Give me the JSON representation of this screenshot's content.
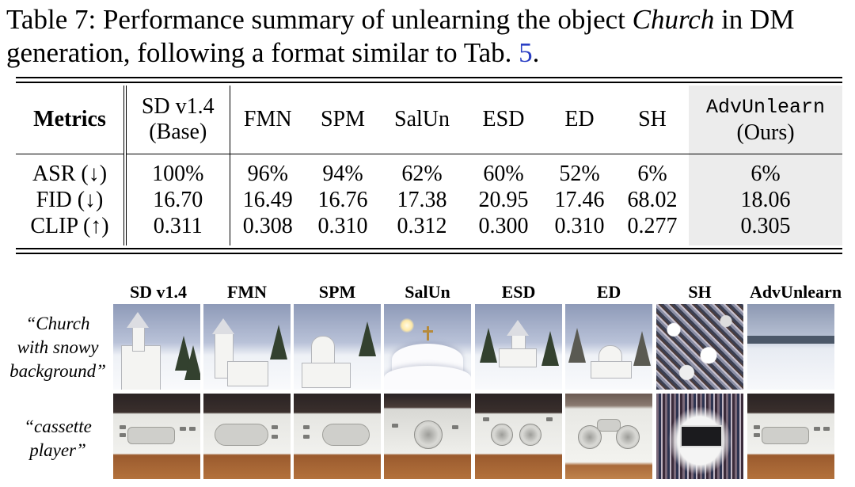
{
  "caption": {
    "prefix": "Table 7: Performance summary of unlearning the object ",
    "object": "Church",
    "middle": " in DM generation, following a format similar to Tab. ",
    "ref": "5",
    "suffix": "."
  },
  "table": {
    "metrics_header": "Metrics",
    "base_header_line1": "SD v1.4",
    "base_header_line2": "(Base)",
    "methods": [
      "FMN",
      "SPM",
      "SalUn",
      "ESD",
      "ED",
      "SH"
    ],
    "ours_header_line1": "AdvUnlearn",
    "ours_header_line2": "(Ours)",
    "rows": [
      {
        "metric": "ASR (↓)",
        "base": "100%",
        "values": [
          "96%",
          "94%",
          "62%",
          "60%",
          "52%",
          "6%"
        ],
        "ours": "6%"
      },
      {
        "metric": "FID (↓)",
        "base": "16.70",
        "values": [
          "16.49",
          "16.76",
          "17.38",
          "20.95",
          "17.46",
          "68.02"
        ],
        "ours": "18.06"
      },
      {
        "metric": "CLIP (↑)",
        "base": "0.311",
        "values": [
          "0.308",
          "0.310",
          "0.312",
          "0.300",
          "0.310",
          "0.277"
        ],
        "ours": "0.305"
      }
    ]
  },
  "figure": {
    "columns": [
      "SD v1.4",
      "FMN",
      "SPM",
      "SalUn",
      "ESD",
      "ED",
      "SH",
      "AdvUnlearn"
    ],
    "rows": [
      {
        "prompt_lines": [
          "“Church",
          "with snowy",
          "background”"
        ]
      },
      {
        "prompt_lines": [
          "“cassette",
          "player”"
        ]
      }
    ]
  }
}
